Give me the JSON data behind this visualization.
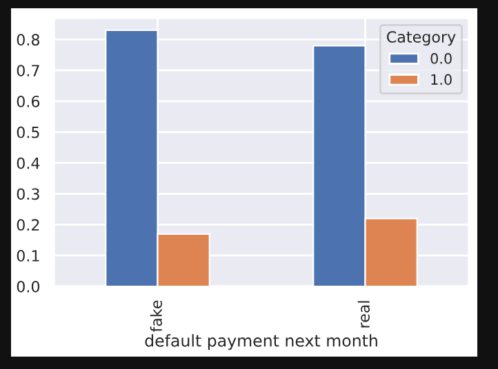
{
  "chart_data": {
    "type": "bar",
    "xlabel": "default payment next month",
    "legend_title": "Category",
    "categories": [
      "fake",
      "real"
    ],
    "series": [
      {
        "name": "0.0",
        "color": "#4c72b0",
        "values": [
          0.83,
          0.78
        ]
      },
      {
        "name": "1.0",
        "color": "#dd8452",
        "values": [
          0.17,
          0.22
        ]
      }
    ],
    "ylim": [
      0,
      0.87
    ],
    "yticks": [
      {
        "value": 0,
        "label": "0.0"
      },
      0.1,
      0.2,
      0.3,
      0.4,
      0.5,
      0.6,
      0.7,
      0.8
    ],
    "grid": true,
    "legend": "top right"
  }
}
